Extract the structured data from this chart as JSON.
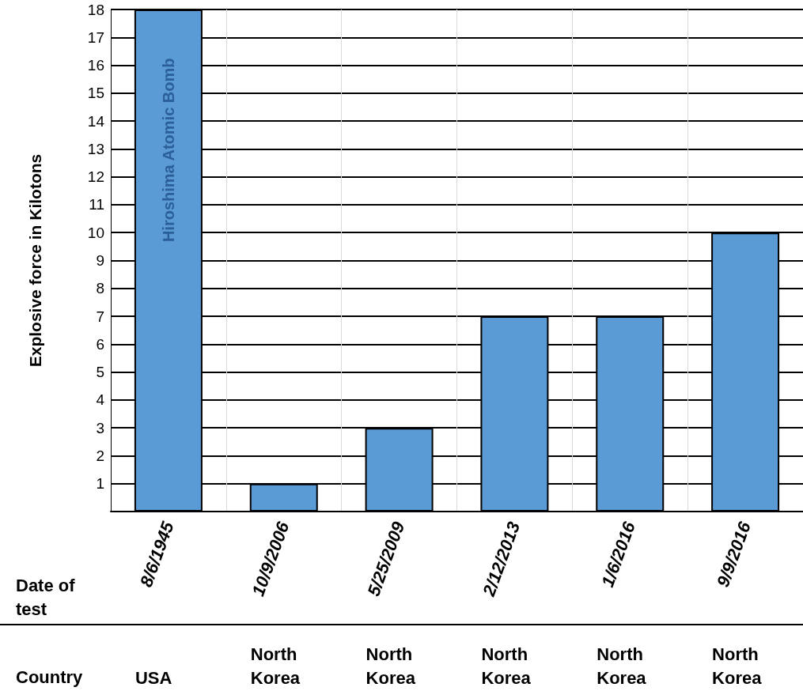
{
  "chart_data": {
    "type": "bar",
    "ylabel": "Explosive force in Kilotons",
    "xlabel": "Date of test",
    "categories": [
      "8/6/1945",
      "10/9/2006",
      "5/25/2009",
      "2/12/2013",
      "1/6/2016",
      "9/9/2016"
    ],
    "values": [
      18,
      1,
      3,
      7,
      7,
      10
    ],
    "color": "#5b9bd5",
    "ylim": [
      0,
      18
    ],
    "yticks": [
      1,
      2,
      3,
      4,
      5,
      6,
      7,
      8,
      9,
      10,
      11,
      12,
      13,
      14,
      15,
      16,
      17,
      18
    ],
    "grid": "y",
    "annotations": [
      "Hiroshima Atomic Bomb",
      "Country",
      "USA",
      "North Korea",
      "North Korea",
      "North Korea",
      "North Korea",
      "North Korea"
    ]
  }
}
